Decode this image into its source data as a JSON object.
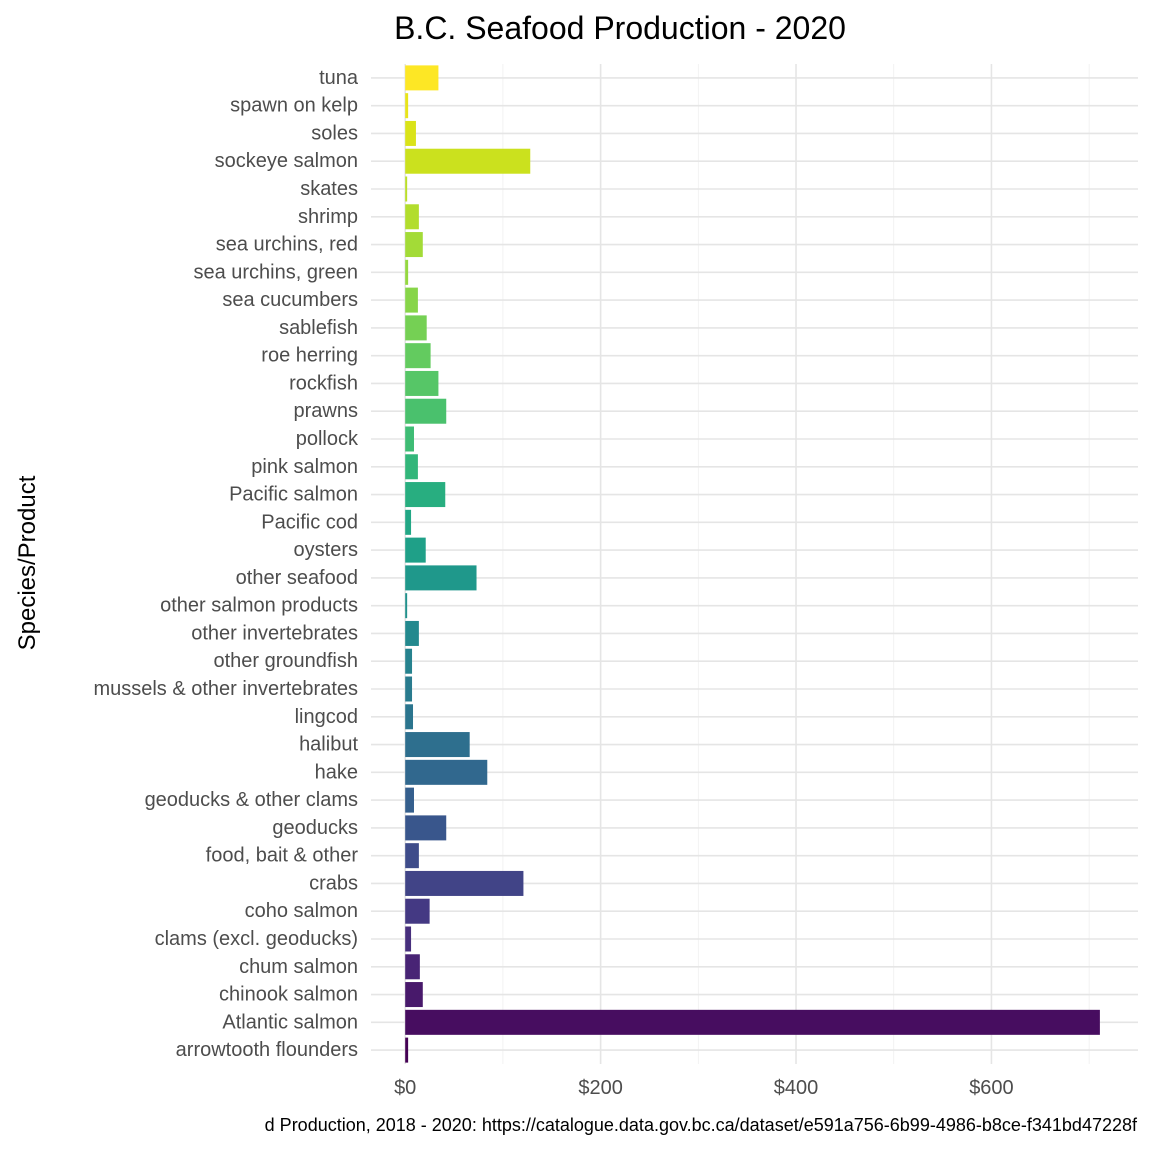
{
  "chart_data": {
    "type": "bar",
    "orientation": "horizontal",
    "title": "B.C. Seafood Production - 2020",
    "xlabel": "",
    "ylabel": "Species/Product",
    "caption": "d Production, 2018 - 2020: https://catalogue.data.gov.bc.ca/dataset/e591a756-6b99-4986-b8ce-f341bd47228f",
    "xlim": [
      -35,
      750
    ],
    "x_ticks": [
      0,
      200,
      400,
      600
    ],
    "x_tick_labels": [
      "$0",
      "$200",
      "$400",
      "$600"
    ],
    "grid": true,
    "legend": "none",
    "categories": [
      "arrowtooth flounders",
      "Atlantic salmon",
      "chinook salmon",
      "chum salmon",
      "clams (excl. geoducks)",
      "coho salmon",
      "crabs",
      "food, bait & other",
      "geoducks",
      "geoducks & other clams",
      "hake",
      "halibut",
      "lingcod",
      "mussels & other invertebrates",
      "other groundfish",
      "other invertebrates",
      "other salmon products",
      "other seafood",
      "oysters",
      "Pacific cod",
      "Pacific salmon",
      "pink salmon",
      "pollock",
      "prawns",
      "rockfish",
      "roe herring",
      "sablefish",
      "sea cucumbers",
      "sea urchins, green",
      "sea urchins, red",
      "shrimp",
      "skates",
      "sockeye salmon",
      "soles",
      "spawn on kelp",
      "tuna"
    ],
    "values": [
      3,
      711,
      18,
      15,
      6,
      25,
      121,
      14,
      42,
      9,
      84,
      66,
      8,
      7,
      7,
      14,
      2,
      73,
      21,
      6,
      41,
      13,
      9,
      42,
      34,
      26,
      22,
      13,
      3,
      18,
      14,
      2,
      128,
      11,
      3,
      34
    ],
    "colors": [
      "#440154",
      "#470D60",
      "#48196B",
      "#482475",
      "#472F7D",
      "#443983",
      "#414487",
      "#3E4C8A",
      "#39568C",
      "#355F8D",
      "#31688E",
      "#2E6F8E",
      "#2B758E",
      "#297B8E",
      "#26828E",
      "#23898E",
      "#21918C",
      "#1F988B",
      "#1FA088",
      "#22A785",
      "#28AE80",
      "#32B67A",
      "#3EBC74",
      "#4AC16D",
      "#56C667",
      "#63CB5F",
      "#75D054",
      "#87D549",
      "#95D840",
      "#A3DB37",
      "#B2DD2D",
      "#BBDF27",
      "#CBE11E",
      "#DAE319",
      "#E8E419",
      "#FDE725"
    ]
  }
}
